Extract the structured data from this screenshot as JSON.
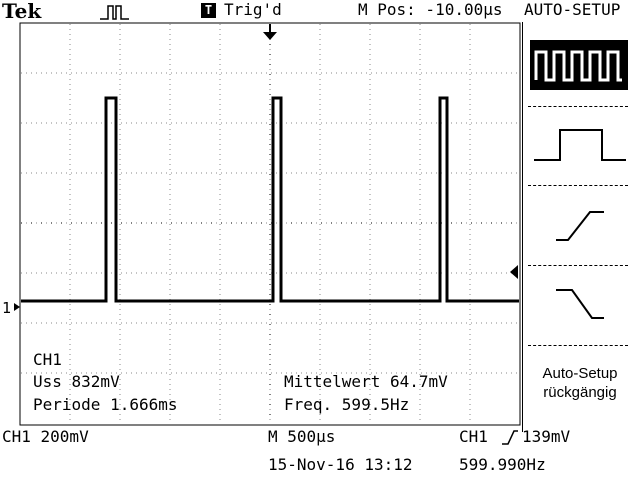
{
  "header": {
    "brand": "Tek",
    "trigger_mode_icon": "pulse-trigger-icon",
    "trigger_badge": "T",
    "trigger_status": "Trig'd",
    "m_pos": "M Pos: -10.00µs",
    "menu_title": "AUTO-SETUP"
  },
  "measurements": {
    "channel": "CH1",
    "uss": "Uss 832mV",
    "periode": "Periode 1.666ms",
    "mittelwert": "Mittelwert 64.7mV",
    "freq": "Freq. 599.5Hz"
  },
  "ground_marker": "1",
  "menu": {
    "items": [
      {
        "icon": "multi-cycle-waveform-icon",
        "active": true
      },
      {
        "icon": "single-cycle-waveform-icon",
        "active": false
      },
      {
        "icon": "rising-edge-icon",
        "active": false
      },
      {
        "icon": "falling-edge-icon",
        "active": false
      }
    ],
    "undo_label_1": "Auto-Setup",
    "undo_label_2": "rückgängig"
  },
  "footer": {
    "ch1_scale": "CH1  200mV",
    "timebase": "M 500µs",
    "trigger_level_source": "CH1",
    "trigger_level_value": "139mV",
    "date_time": "15-Nov-16 13:12",
    "trigger_freq": "599.990Hz"
  }
}
